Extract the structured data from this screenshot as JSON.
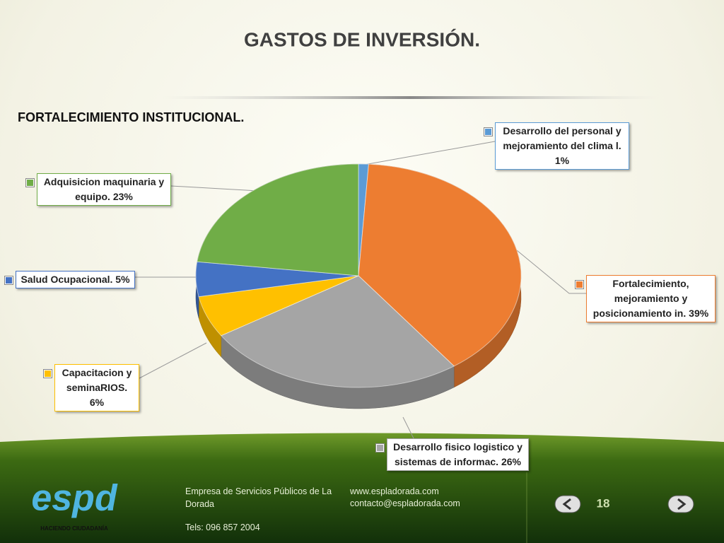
{
  "page": {
    "title": "GASTOS DE INVERSIÓN."
  },
  "chart_data": {
    "type": "pie",
    "subtitle": "FORTALECIMIENTO INSTITUCIONAL.",
    "categories": [
      "Desarrollo del personal y mejoramiento del clima l.",
      "Fortalecimiento, mejoramiento y posicionamiento in.",
      "Desarrollo fisico logistico y sistemas de informac.",
      "Capacitacion y seminaRIOS.",
      "Salud Ocupacional.",
      "Adquisicion maquinaria y equipo."
    ],
    "values": [
      1,
      39,
      26,
      6,
      5,
      23
    ],
    "value_labels": [
      "1%",
      "39%",
      "26%",
      "6%",
      "5%",
      "23%"
    ],
    "colors": [
      "#5b9bd5",
      "#ed7d31",
      "#a5a5a5",
      "#ffc000",
      "#4472c4",
      "#70ad47"
    ]
  },
  "footer": {
    "logo": "espd",
    "tagline": "HACIENDO CIUDADANÍA",
    "company": "Empresa de Servicios Públicos de La Dorada",
    "phone": "Tels:  096 857 2004",
    "web": "www.espladorada.com",
    "email": "contacto@espladorada.com",
    "page_number": "18"
  }
}
